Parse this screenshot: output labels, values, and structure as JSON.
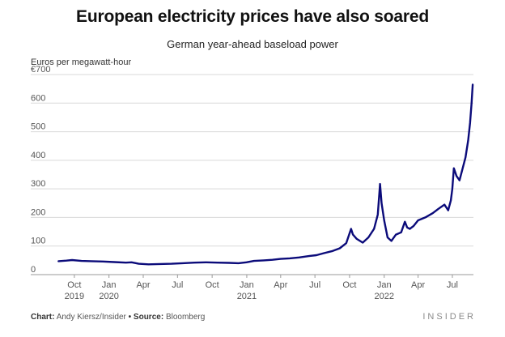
{
  "header": {
    "title": "European electricity prices have also soared",
    "subtitle": "German year-ahead baseload power",
    "unit_label": "Euros per megawatt-hour"
  },
  "footer": {
    "chart_prefix": "Chart:",
    "chart_author": "Andy Kiersz/Insider",
    "bullet": "•",
    "source_prefix": "Source:",
    "source_name": "Bloomberg",
    "brand": "INSIDER"
  },
  "colors": {
    "line": "#0b0b7a",
    "grid": "#d9d9d9",
    "tick_text": "#555555"
  },
  "chart_data": {
    "type": "line",
    "title": "European electricity prices have also soared",
    "subtitle": "German year-ahead baseload power",
    "ylabel": "Euros per megawatt-hour",
    "xlabel": "",
    "ylim": [
      0,
      700
    ],
    "xlim": [
      "2019-08-15",
      "2022-08-26"
    ],
    "grid": true,
    "y_ticks": [
      {
        "value": 700,
        "label": "€700"
      },
      {
        "value": 600,
        "label": "600"
      },
      {
        "value": 500,
        "label": "500"
      },
      {
        "value": 400,
        "label": "400"
      },
      {
        "value": 300,
        "label": "300"
      },
      {
        "value": 200,
        "label": "200"
      },
      {
        "value": 100,
        "label": "100"
      },
      {
        "value": 0,
        "label": "0"
      }
    ],
    "x_ticks": [
      {
        "date": "2019-10-01",
        "label": "Oct",
        "year": "2019"
      },
      {
        "date": "2020-01-01",
        "label": "Jan",
        "year": "2020"
      },
      {
        "date": "2020-04-01",
        "label": "Apr",
        "year": ""
      },
      {
        "date": "2020-07-01",
        "label": "Jul",
        "year": ""
      },
      {
        "date": "2020-10-01",
        "label": "Oct",
        "year": ""
      },
      {
        "date": "2021-01-01",
        "label": "Jan",
        "year": "2021"
      },
      {
        "date": "2021-04-01",
        "label": "Apr",
        "year": ""
      },
      {
        "date": "2021-07-01",
        "label": "Jul",
        "year": ""
      },
      {
        "date": "2021-10-01",
        "label": "Oct",
        "year": ""
      },
      {
        "date": "2022-01-01",
        "label": "Jan",
        "year": "2022"
      },
      {
        "date": "2022-04-01",
        "label": "Apr",
        "year": ""
      },
      {
        "date": "2022-07-01",
        "label": "Jul",
        "year": ""
      }
    ],
    "series": [
      {
        "points": [
          [
            "2019-08-20",
            47
          ],
          [
            "2019-09-10",
            49
          ],
          [
            "2019-09-25",
            51
          ],
          [
            "2019-10-20",
            48
          ],
          [
            "2019-11-15",
            47
          ],
          [
            "2019-12-15",
            46
          ],
          [
            "2020-01-15",
            44
          ],
          [
            "2020-02-15",
            42
          ],
          [
            "2020-03-01",
            43
          ],
          [
            "2020-03-20",
            38
          ],
          [
            "2020-04-15",
            36
          ],
          [
            "2020-05-15",
            37
          ],
          [
            "2020-06-15",
            38
          ],
          [
            "2020-07-15",
            40
          ],
          [
            "2020-08-15",
            42
          ],
          [
            "2020-09-15",
            43
          ],
          [
            "2020-10-15",
            42
          ],
          [
            "2020-11-15",
            41
          ],
          [
            "2020-12-10",
            40
          ],
          [
            "2020-12-31",
            43
          ],
          [
            "2021-01-20",
            48
          ],
          [
            "2021-02-15",
            50
          ],
          [
            "2021-03-10",
            52
          ],
          [
            "2021-04-01",
            55
          ],
          [
            "2021-04-25",
            57
          ],
          [
            "2021-05-20",
            60
          ],
          [
            "2021-06-15",
            65
          ],
          [
            "2021-07-05",
            68
          ],
          [
            "2021-07-25",
            75
          ],
          [
            "2021-08-15",
            82
          ],
          [
            "2021-09-05",
            92
          ],
          [
            "2021-09-22",
            110
          ],
          [
            "2021-10-05",
            160
          ],
          [
            "2021-10-10",
            140
          ],
          [
            "2021-10-20",
            125
          ],
          [
            "2021-11-05",
            112
          ],
          [
            "2021-11-20",
            130
          ],
          [
            "2021-12-05",
            160
          ],
          [
            "2021-12-15",
            210
          ],
          [
            "2021-12-21",
            317
          ],
          [
            "2021-12-25",
            250
          ],
          [
            "2022-01-01",
            190
          ],
          [
            "2022-01-10",
            130
          ],
          [
            "2022-01-20",
            118
          ],
          [
            "2022-02-01",
            140
          ],
          [
            "2022-02-15",
            148
          ],
          [
            "2022-02-25",
            185
          ],
          [
            "2022-03-03",
            165
          ],
          [
            "2022-03-10",
            160
          ],
          [
            "2022-03-20",
            170
          ],
          [
            "2022-04-01",
            190
          ],
          [
            "2022-04-20",
            200
          ],
          [
            "2022-05-10",
            215
          ],
          [
            "2022-05-25",
            230
          ],
          [
            "2022-06-10",
            245
          ],
          [
            "2022-06-20",
            225
          ],
          [
            "2022-06-27",
            260
          ],
          [
            "2022-07-01",
            300
          ],
          [
            "2022-07-05",
            372
          ],
          [
            "2022-07-12",
            345
          ],
          [
            "2022-07-20",
            330
          ],
          [
            "2022-07-28",
            370
          ],
          [
            "2022-08-05",
            410
          ],
          [
            "2022-08-12",
            470
          ],
          [
            "2022-08-17",
            530
          ],
          [
            "2022-08-21",
            600
          ],
          [
            "2022-08-24",
            665
          ]
        ]
      }
    ]
  }
}
